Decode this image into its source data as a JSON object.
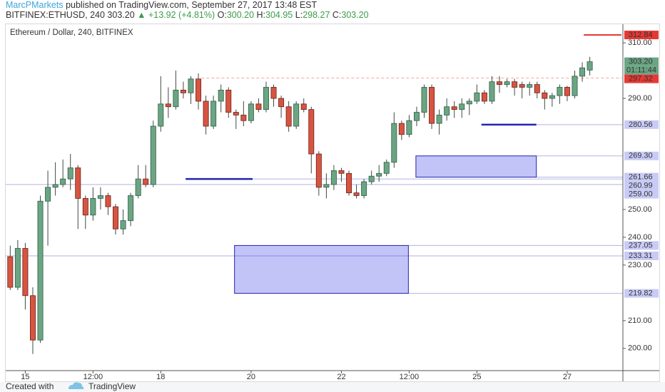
{
  "header": {
    "author": "MarcPMarkets",
    "published": "published on TradingView.com, September 27, 2017 13:48 EST",
    "symbol": "BITFINEX:ETHUSD, 240",
    "last": "303.20",
    "change": "+13.92 (+4.81%)",
    "o_label": "O:",
    "o": "300.20",
    "h_label": "H:",
    "h": "304.95",
    "l_label": "L:",
    "l": "298.27",
    "c_label": "C:",
    "c": "303.20"
  },
  "footer": {
    "created": "Created with",
    "brand": "TradingView"
  },
  "chart_data": {
    "type": "candlestick",
    "title": "Ethereum / Dollar, 240, BITFINEX",
    "up_color": "#6ba583",
    "down_color": "#d75442",
    "wick_color": "#3d4a44",
    "open": [
      233,
      222,
      236,
      219,
      203,
      253,
      258,
      259,
      261,
      265,
      254,
      248,
      254,
      255,
      251,
      243,
      246,
      255,
      261,
      259,
      280,
      288,
      287,
      293,
      292,
      297,
      289,
      280,
      289,
      293,
      285,
      284,
      282,
      288,
      286,
      294,
      290,
      287,
      280,
      288,
      286,
      270,
      258,
      259,
      264,
      263,
      256,
      255,
      260,
      262,
      263,
      267,
      281,
      277,
      282,
      285,
      294,
      281,
      284,
      287,
      286,
      288,
      289,
      292,
      289,
      296,
      295,
      296,
      295,
      294,
      295,
      292,
      290,
      291,
      294,
      291,
      298,
      300.2
    ],
    "high": [
      237,
      239,
      238,
      222,
      255,
      264,
      267,
      268,
      270,
      266,
      255,
      258,
      258,
      256,
      252,
      250,
      256,
      266,
      266,
      282,
      298,
      294,
      300,
      296,
      298,
      299,
      291,
      291,
      295,
      294,
      286,
      289,
      289,
      290,
      296,
      295,
      291,
      289,
      289,
      290,
      287,
      271,
      263,
      266,
      265,
      264,
      259,
      261,
      264,
      266,
      268,
      285,
      282,
      284,
      287,
      295,
      295,
      286,
      290,
      289,
      290,
      290,
      295,
      293,
      298,
      298,
      297,
      297,
      296,
      296,
      296,
      293,
      292,
      295,
      294.5,
      300,
      303,
      304.95
    ],
    "low": [
      221,
      221,
      214,
      198,
      202,
      237,
      255,
      258,
      257,
      243,
      243,
      246,
      250,
      248,
      241,
      241,
      244,
      254,
      258,
      258,
      278,
      283,
      286,
      290,
      288,
      286,
      277,
      279,
      285,
      283,
      279,
      280,
      281,
      285,
      285,
      287,
      283,
      278,
      279,
      285,
      263,
      255,
      254,
      257,
      260,
      255,
      254,
      254,
      259,
      260,
      262,
      265,
      275,
      276,
      280,
      283,
      279,
      277,
      282,
      283,
      283,
      284,
      288,
      288,
      288,
      292,
      294,
      291,
      290,
      291,
      290,
      286,
      287,
      288,
      289,
      290,
      296,
      298.27
    ],
    "close": [
      222,
      236,
      219,
      203,
      253,
      258,
      259,
      261,
      265,
      254,
      248,
      254,
      255,
      251,
      243,
      246,
      255,
      261,
      259,
      280,
      288,
      287,
      293,
      292,
      297,
      289,
      280,
      289,
      293,
      285,
      284,
      282,
      288,
      286,
      294,
      290,
      287,
      280,
      288,
      286,
      270,
      258,
      259,
      264,
      263,
      256,
      255,
      260,
      262,
      263,
      267,
      281,
      277,
      282,
      285,
      294,
      281,
      284,
      287,
      286,
      288,
      289,
      292,
      289,
      296,
      295,
      296,
      294,
      294,
      295,
      292,
      290,
      291,
      294,
      291,
      298,
      301,
      303.2
    ],
    "xlim": [
      -0.6,
      81.4
    ],
    "xticks": [
      {
        "value": 2,
        "label": "15"
      },
      {
        "value": 11,
        "label": "12:00"
      },
      {
        "value": 20,
        "label": "18"
      },
      {
        "value": 32,
        "label": "20"
      },
      {
        "value": 44,
        "label": "22"
      },
      {
        "value": 53,
        "label": "12:00"
      },
      {
        "value": 62,
        "label": "25"
      },
      {
        "value": 74,
        "label": "27"
      }
    ],
    "ylim": [
      192,
      316.7
    ],
    "yticks": [
      {
        "value": 200,
        "label": "200.00"
      },
      {
        "value": 210,
        "label": "210.00"
      },
      {
        "value": 230,
        "label": "230.00"
      },
      {
        "value": 240,
        "label": "240.00"
      },
      {
        "value": 250,
        "label": "250.00"
      },
      {
        "value": 290,
        "label": "290.00"
      },
      {
        "value": 310,
        "label": "310.00"
      }
    ],
    "countdown": "01:11:44",
    "levels": [
      {
        "value": 312.84,
        "label": "312.84",
        "color": "#e53935",
        "text_color": "#ffffff",
        "line_color": "#e53935"
      },
      {
        "value": 303.2,
        "label": "303.20",
        "color": "#6ba583",
        "text_color": "#ffffff",
        "line_color": "#6ba583"
      },
      {
        "value": 297.32,
        "label": "297.32",
        "color": "#e53935",
        "text_color": "#ffffff",
        "line_color": "#f4a6a6"
      },
      {
        "value": 280.56,
        "label": "280.56",
        "color": "#c9cbf6",
        "text_color": "#1a1a66",
        "line_color": "#2323b0"
      },
      {
        "value": 269.3,
        "label": "269.30",
        "color": "#c9cbf6",
        "text_color": "#1a1a66",
        "line_color": "#2323b0"
      },
      {
        "value": 261.66,
        "label": "261.66",
        "color": "#c9cbf6",
        "text_color": "#1a1a66",
        "line_color": "#2323b0"
      },
      {
        "value": 260.99,
        "label": "260.99",
        "color": "#c9cbf6",
        "text_color": "#1a1a66",
        "line_color": "#2323b0"
      },
      {
        "value": 259,
        "label": "259.00",
        "color": "#c9cbf6",
        "text_color": "#1a1a66",
        "line_color": "#2323b0"
      },
      {
        "value": 237.05,
        "label": "237.05",
        "color": "#c9cbf6",
        "text_color": "#1a1a66",
        "line_color": "#2323b0"
      },
      {
        "value": 233.31,
        "label": "233.31",
        "color": "#c9cbf6",
        "text_color": "#1a1a66",
        "line_color": "#2323b0"
      },
      {
        "value": 219.82,
        "label": "219.82",
        "color": "#c9cbf6",
        "text_color": "#1a1a66",
        "line_color": "#2323b0"
      }
    ]
  }
}
